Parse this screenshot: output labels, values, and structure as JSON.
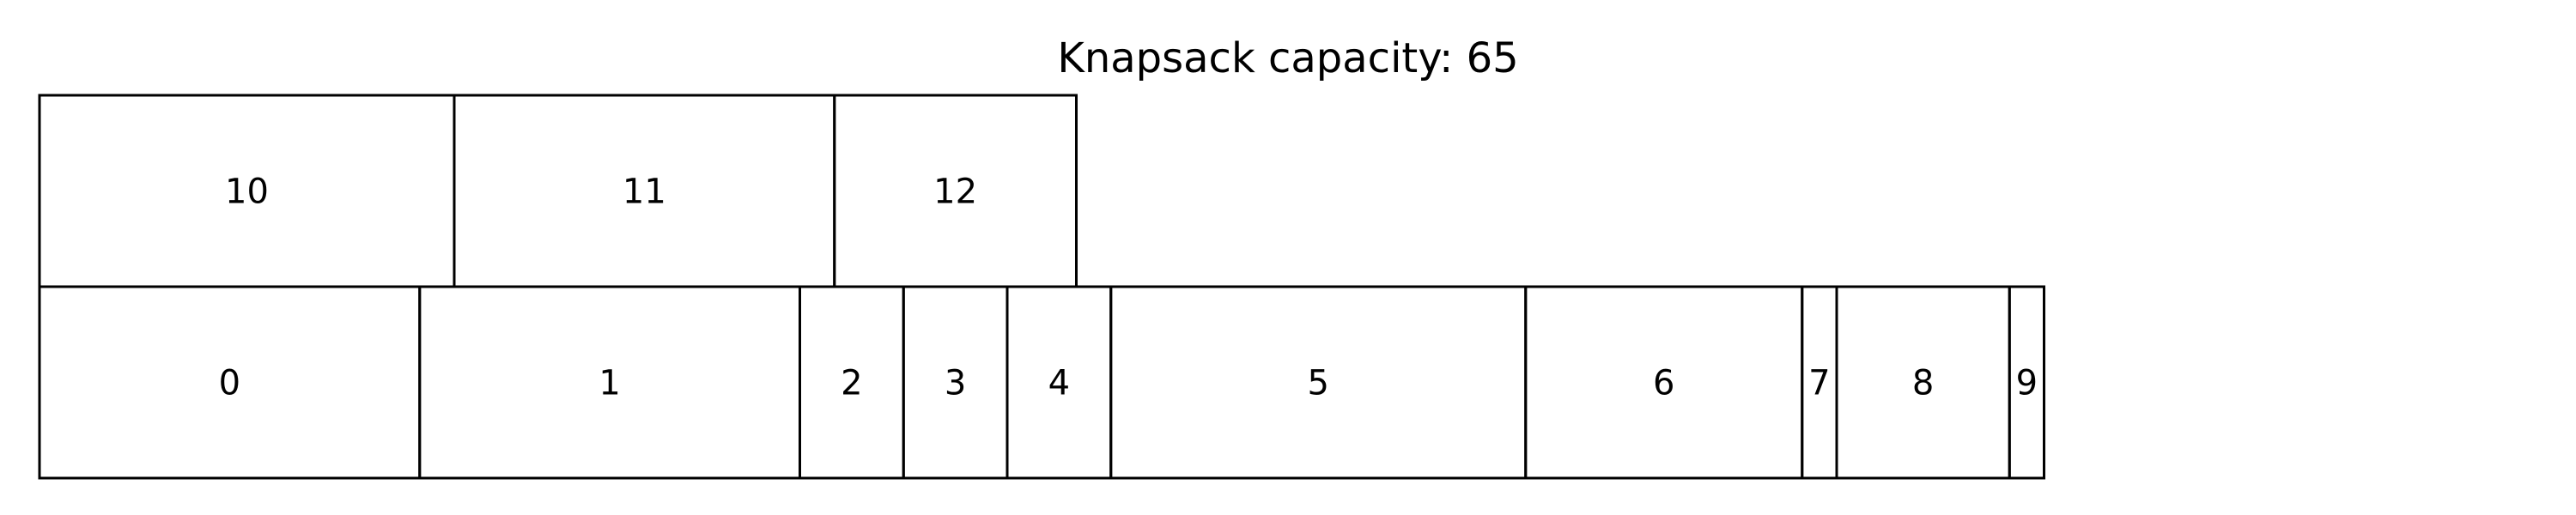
{
  "title": "Knapsack capacity: 65",
  "capacity": 65,
  "rows": [
    {
      "items": [
        {
          "label": "0",
          "size": 11
        },
        {
          "label": "1",
          "size": 11
        },
        {
          "label": "2",
          "size": 3
        },
        {
          "label": "3",
          "size": 3
        },
        {
          "label": "4",
          "size": 3
        },
        {
          "label": "5",
          "size": 12
        },
        {
          "label": "6",
          "size": 8
        },
        {
          "label": "7",
          "size": 1
        },
        {
          "label": "8",
          "size": 5
        },
        {
          "label": "9",
          "size": 1
        }
      ]
    },
    {
      "items": [
        {
          "label": "10",
          "size": 12
        },
        {
          "label": "11",
          "size": 11
        },
        {
          "label": "12",
          "size": 7
        }
      ]
    }
  ],
  "colors": {
    "background": "#ffffff",
    "stroke": "#000000",
    "text": "#000000"
  }
}
